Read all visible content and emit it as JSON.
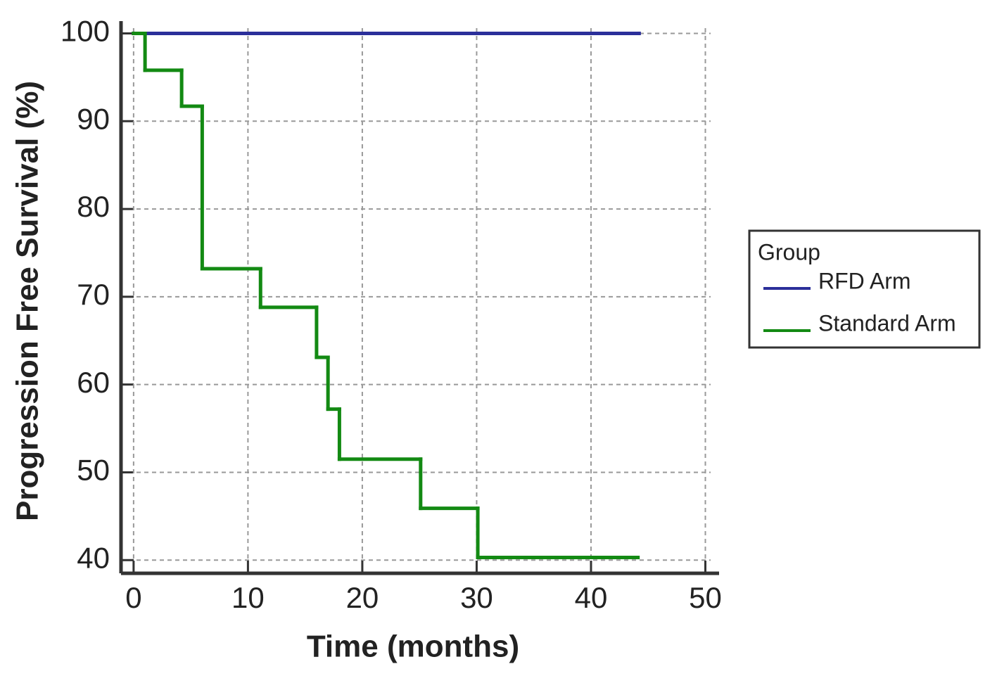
{
  "chart_data": {
    "type": "step",
    "x_label": "Time (months)",
    "y_label": "Progression Free Survival (%)",
    "legend_title": "Group",
    "legend_position": "right",
    "grid": true,
    "xlim": [
      -1.1,
      51.2
    ],
    "ylim": [
      38.5,
      101.4
    ],
    "xticks": [
      0,
      10,
      20,
      30,
      40,
      50
    ],
    "yticks": [
      40,
      50,
      60,
      70,
      80,
      90,
      100
    ],
    "series": [
      {
        "name": "RFD Arm",
        "color": "#2b2f9a",
        "x": [
          0,
          44.2
        ],
        "values": [
          100,
          100
        ]
      },
      {
        "name": "Standard Arm",
        "color": "#138a13",
        "x": [
          0,
          1,
          4.2,
          6,
          11.1,
          16,
          17,
          18,
          25.1,
          30.1,
          44.1
        ],
        "values": [
          100,
          95.8,
          91.7,
          73.2,
          68.8,
          63.1,
          57.2,
          51.5,
          45.9,
          40.3,
          40.3
        ]
      }
    ]
  }
}
